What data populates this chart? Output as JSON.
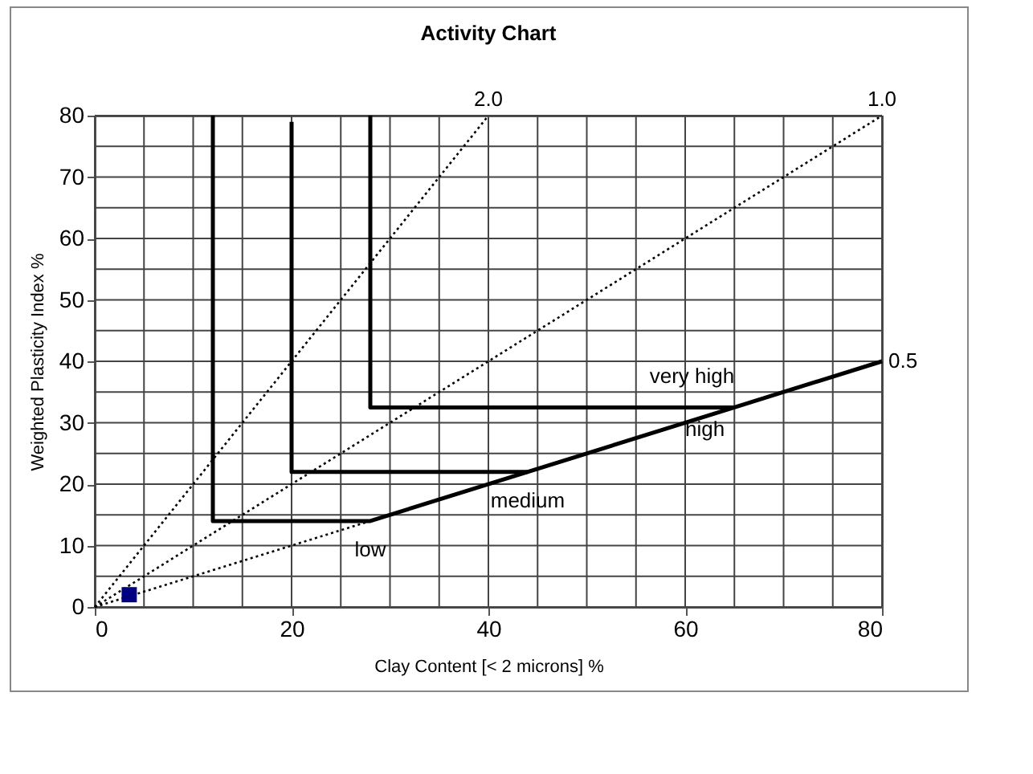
{
  "chart_data": {
    "type": "line",
    "title": "Activity Chart",
    "xlabel": "Clay Content [< 2 microns] %",
    "ylabel": "Weighted Plasticity Index %",
    "xlim": [
      0,
      80
    ],
    "ylim": [
      0,
      80
    ],
    "xticks": [
      0,
      {
        "value": 5,
        "label": null
      },
      {
        "value": 10,
        "label": null
      },
      {
        "value": 15,
        "label": null
      },
      20,
      {
        "value": 25,
        "label": null
      },
      {
        "value": 30,
        "label": null
      },
      {
        "value": 35,
        "label": null
      },
      40,
      {
        "value": 45,
        "label": null
      },
      {
        "value": 50,
        "label": null
      },
      {
        "value": 55,
        "label": null
      },
      60,
      {
        "value": 65,
        "label": null
      },
      {
        "value": 70,
        "label": null
      },
      {
        "value": 75,
        "label": null
      },
      80
    ],
    "yticks": [
      0,
      {
        "value": 5,
        "label": null
      },
      10,
      {
        "value": 15,
        "label": null
      },
      20,
      {
        "value": 25,
        "label": null
      },
      30,
      {
        "value": 35,
        "label": null
      },
      40,
      {
        "value": 45,
        "label": null
      },
      50,
      {
        "value": 55,
        "label": null
      },
      60,
      {
        "value": 65,
        "label": null
      },
      70,
      {
        "value": 75,
        "label": null
      },
      80
    ],
    "grid": true,
    "series": [
      {
        "color": "#000000",
        "line_style": "dotted",
        "x": [
          0,
          40
        ],
        "values": [
          0,
          80
        ]
      },
      {
        "color": "#000000",
        "line_style": "dotted",
        "x": [
          0,
          80
        ],
        "values": [
          0,
          80
        ]
      },
      {
        "color": "#000000",
        "line_style": "dotted",
        "x": [
          0,
          28
        ],
        "values": [
          0,
          14
        ]
      },
      {
        "color": "#000000",
        "line_style": "solid",
        "x": [
          12,
          12,
          28,
          80
        ],
        "values": [
          80,
          14,
          14,
          40
        ]
      },
      {
        "color": "#000000",
        "line_style": "solid",
        "x": [
          20,
          20,
          44
        ],
        "values": [
          79,
          22,
          22
        ]
      },
      {
        "color": "#000000",
        "line_style": "solid",
        "x": [
          28,
          28,
          65
        ],
        "values": [
          80,
          32.5,
          32.5
        ]
      },
      {
        "type": "scatter",
        "color": "#000080",
        "marker": "square",
        "x": [
          3.5
        ],
        "values": [
          2
        ]
      }
    ],
    "annotations": [
      {
        "text": "2.0",
        "x": 40,
        "y": 80
      },
      {
        "text": "1.0",
        "x": 80,
        "y": 80
      },
      {
        "text": "0.5",
        "x": 80,
        "y": 40
      },
      {
        "text": "very high",
        "x": 65,
        "y": 32.5
      },
      {
        "text": "high",
        "x": 65,
        "y": 32.5
      },
      {
        "text": "medium",
        "x": 44,
        "y": 22
      },
      {
        "text": "low",
        "x": 28,
        "y": 14
      }
    ]
  }
}
